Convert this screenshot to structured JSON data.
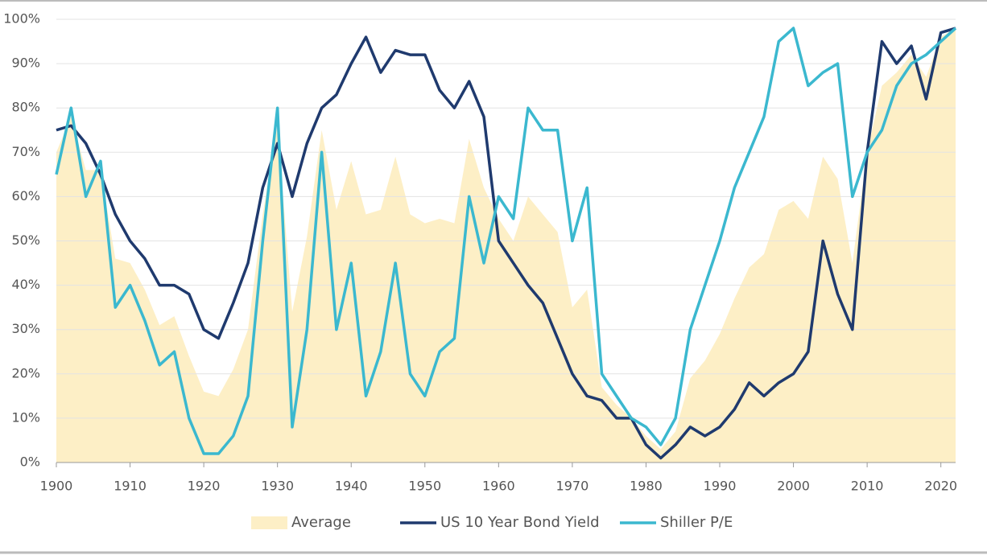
{
  "chart_data": {
    "type": "line",
    "x": [
      1900,
      1902,
      1904,
      1906,
      1908,
      1910,
      1912,
      1914,
      1916,
      1918,
      1920,
      1922,
      1924,
      1926,
      1928,
      1930,
      1932,
      1934,
      1936,
      1938,
      1940,
      1942,
      1944,
      1946,
      1948,
      1950,
      1952,
      1954,
      1956,
      1958,
      1960,
      1962,
      1964,
      1966,
      1968,
      1970,
      1972,
      1974,
      1976,
      1978,
      1980,
      1982,
      1984,
      1986,
      1988,
      1990,
      1992,
      1994,
      1996,
      1998,
      2000,
      2002,
      2004,
      2006,
      2008,
      2010,
      2012,
      2014,
      2016,
      2018,
      2020,
      2022
    ],
    "series": [
      {
        "name": "Average",
        "color": "#fdefc6",
        "kind": "area",
        "values": [
          70,
          78,
          66,
          66,
          46,
          45,
          39,
          31,
          33,
          24,
          16,
          15,
          21,
          30,
          56,
          76,
          34,
          51,
          75,
          57,
          68,
          56,
          57,
          69,
          56,
          54,
          55,
          54,
          73,
          62,
          55,
          50,
          60,
          56,
          52,
          35,
          39,
          17,
          13,
          10,
          6,
          3,
          7,
          19,
          23,
          29,
          37,
          44,
          47,
          57,
          59,
          55,
          69,
          64,
          45,
          70,
          85,
          88,
          92,
          87,
          96,
          98
        ]
      },
      {
        "name": "US 10 Year Bond Yield",
        "color": "#1f3a6e",
        "kind": "line",
        "values": [
          75,
          76,
          72,
          65,
          56,
          50,
          46,
          40,
          40,
          38,
          30,
          28,
          36,
          45,
          62,
          72,
          60,
          72,
          80,
          83,
          90,
          96,
          88,
          93,
          92,
          92,
          84,
          80,
          86,
          78,
          50,
          45,
          40,
          36,
          28,
          20,
          15,
          14,
          10,
          10,
          4,
          1,
          4,
          8,
          6,
          8,
          12,
          18,
          15,
          18,
          20,
          25,
          50,
          38,
          30,
          70,
          95,
          90,
          94,
          82,
          97,
          98
        ]
      },
      {
        "name": "Shiller P/E",
        "color": "#3bb8cf",
        "kind": "line",
        "values": [
          65,
          80,
          60,
          68,
          35,
          40,
          32,
          22,
          25,
          10,
          2,
          2,
          6,
          15,
          50,
          80,
          8,
          30,
          70,
          30,
          45,
          15,
          25,
          45,
          20,
          15,
          25,
          28,
          60,
          45,
          60,
          55,
          80,
          75,
          75,
          50,
          62,
          20,
          15,
          10,
          8,
          4,
          10,
          30,
          40,
          50,
          62,
          70,
          78,
          95,
          98,
          85,
          88,
          90,
          60,
          70,
          75,
          85,
          90,
          92,
          95,
          98
        ]
      }
    ],
    "xlim": [
      1900,
      2022
    ],
    "xticks": [
      1900,
      1910,
      1920,
      1930,
      1940,
      1950,
      1960,
      1970,
      1980,
      1990,
      2000,
      2010,
      2020
    ],
    "ylim": [
      0,
      100
    ],
    "yticks": [
      {
        "value": 0,
        "label": "0%"
      },
      {
        "value": 10,
        "label": "10%"
      },
      {
        "value": 20,
        "label": "20%"
      },
      {
        "value": 30,
        "label": "30%"
      },
      {
        "value": 40,
        "label": "40%"
      },
      {
        "value": 50,
        "label": "50%"
      },
      {
        "value": 60,
        "label": "60%"
      },
      {
        "value": 70,
        "label": "70%"
      },
      {
        "value": 80,
        "label": "80%"
      },
      {
        "value": 90,
        "label": "90%"
      },
      {
        "value": 100,
        "label": "100%"
      }
    ],
    "grid": true,
    "legend": "bottom"
  }
}
